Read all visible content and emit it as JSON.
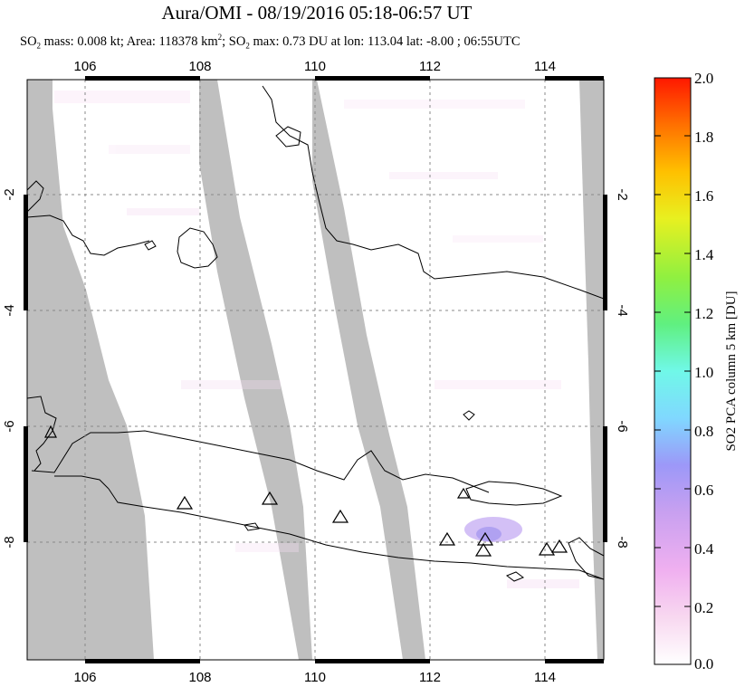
{
  "header": {
    "title": "Aura/OMI - 08/19/2016 05:18-06:57 UT",
    "subtitle_parts": {
      "so2_label": "SO",
      "sub2": "2",
      "mass_text": " mass: 0.008 kt; Area: 118378 km",
      "sup2": "2",
      "sep": "; SO",
      "max_text": " max: 0.73 DU at lon: 113.04 lat: -8.00 ; 06:55UTC"
    }
  },
  "map": {
    "lon_ticks": [
      "106",
      "108",
      "110",
      "112",
      "114"
    ],
    "lat_ticks_left": [
      "-2",
      "-4",
      "-6",
      "-8"
    ],
    "lat_ticks_right": [
      "-2",
      "-4",
      "-6",
      "-8"
    ],
    "volcano_count": 10
  },
  "colorbar": {
    "labels": [
      "2.0",
      "1.8",
      "1.6",
      "1.4",
      "1.2",
      "1.0",
      "0.8",
      "0.6",
      "0.4",
      "0.2",
      "0.0"
    ],
    "title": "SO2 PCA column 5 km [DU]",
    "colors": [
      "#ffffff",
      "#f8d8f0",
      "#f0a8f0",
      "#d0a0f0",
      "#a090f8",
      "#80c0ff",
      "#70f8f8",
      "#60f080",
      "#a0f040",
      "#f0f020",
      "#ffc000",
      "#ff7000",
      "#ff1800"
    ]
  }
}
